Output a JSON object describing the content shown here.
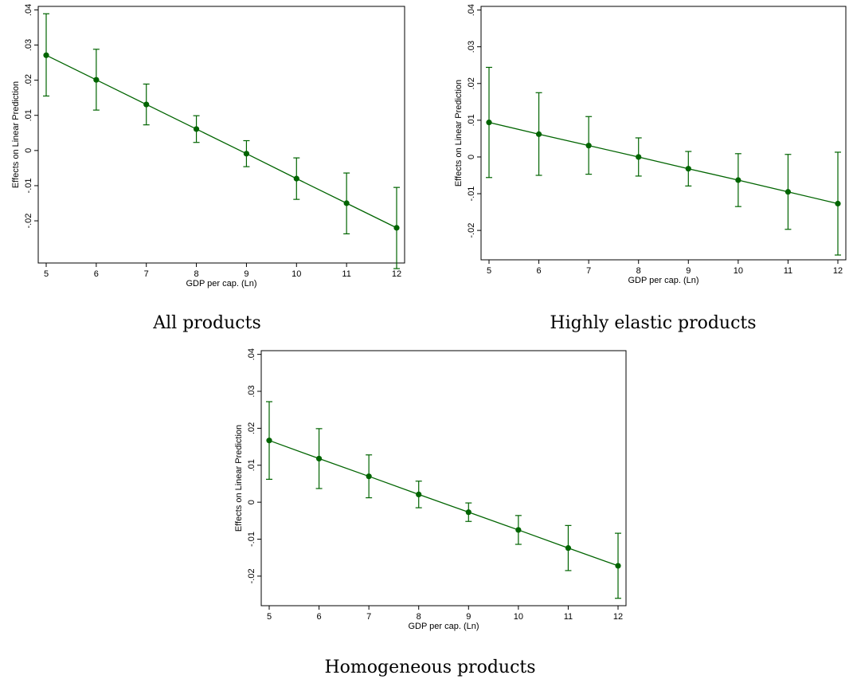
{
  "chart_data": [
    {
      "type": "line",
      "title": "All products",
      "xlabel": "GDP per cap. (Ln)",
      "ylabel": "Effects on Linear Prediction",
      "xlim": [
        5,
        12
      ],
      "ylim": [
        -0.032,
        0.041
      ],
      "x_ticks": [
        "5",
        "6",
        "7",
        "8",
        "9",
        "10",
        "11",
        "12"
      ],
      "y_ticks": [
        {
          "value": -0.02,
          "label": "-.02"
        },
        {
          "value": -0.01,
          "label": "-.01"
        },
        {
          "value": 0,
          "label": "0"
        },
        {
          "value": 0.01,
          "label": ".01"
        },
        {
          "value": 0.02,
          "label": ".02"
        },
        {
          "value": 0.03,
          "label": ".03"
        },
        {
          "value": 0.04,
          "label": ".04"
        }
      ],
      "grid": false,
      "series": [
        {
          "x": [
            5,
            6,
            7,
            8,
            9,
            10,
            11,
            12
          ],
          "y": [
            0.0271,
            0.0201,
            0.0131,
            0.0061,
            -0.0009,
            -0.008,
            -0.015,
            -0.022
          ],
          "lower": [
            0.0155,
            0.0115,
            0.0073,
            0.0023,
            -0.0046,
            -0.0139,
            -0.0237,
            -0.0336
          ],
          "upper": [
            0.0389,
            0.0288,
            0.0189,
            0.0099,
            0.0028,
            -0.0021,
            -0.0064,
            -0.0105
          ],
          "color": "#006400"
        }
      ]
    },
    {
      "type": "line",
      "title": "Highly elastic products",
      "xlabel": "GDP per cap. (Ln)",
      "ylabel": "Effects on Linear Prediction",
      "xlim": [
        5,
        12
      ],
      "ylim": [
        -0.028,
        0.041
      ],
      "x_ticks": [
        "5",
        "6",
        "7",
        "8",
        "9",
        "10",
        "11",
        "12"
      ],
      "y_ticks": [
        {
          "value": -0.02,
          "label": "-.02"
        },
        {
          "value": -0.01,
          "label": "-.01"
        },
        {
          "value": 0,
          "label": "0"
        },
        {
          "value": 0.01,
          "label": ".01"
        },
        {
          "value": 0.02,
          "label": ".02"
        },
        {
          "value": 0.03,
          "label": ".03"
        },
        {
          "value": 0.04,
          "label": ".04"
        }
      ],
      "grid": false,
      "series": [
        {
          "x": [
            5,
            6,
            7,
            8,
            9,
            10,
            11,
            12
          ],
          "y": [
            0.0094,
            0.0062,
            0.0031,
            0.0,
            -0.0032,
            -0.0063,
            -0.0095,
            -0.0127
          ],
          "lower": [
            -0.0056,
            -0.005,
            -0.0047,
            -0.0052,
            -0.0079,
            -0.0135,
            -0.0197,
            -0.0267
          ],
          "upper": [
            0.0244,
            0.0175,
            0.011,
            0.0052,
            0.0015,
            0.0009,
            0.0007,
            0.0013
          ],
          "color": "#006400"
        }
      ]
    },
    {
      "type": "line",
      "title": "Homogeneous products",
      "xlabel": "GDP per cap. (Ln)",
      "ylabel": "Effects on Linear Prediction",
      "xlim": [
        5,
        12
      ],
      "ylim": [
        -0.028,
        0.041
      ],
      "x_ticks": [
        "5",
        "6",
        "7",
        "8",
        "9",
        "10",
        "11",
        "12"
      ],
      "y_ticks": [
        {
          "value": -0.02,
          "label": "-.02"
        },
        {
          "value": -0.01,
          "label": "-.01"
        },
        {
          "value": 0,
          "label": "0"
        },
        {
          "value": 0.01,
          "label": ".01"
        },
        {
          "value": 0.02,
          "label": ".02"
        },
        {
          "value": 0.03,
          "label": ".03"
        },
        {
          "value": 0.04,
          "label": ".04"
        }
      ],
      "grid": false,
      "series": [
        {
          "x": [
            5,
            6,
            7,
            8,
            9,
            10,
            11,
            12
          ],
          "y": [
            0.0167,
            0.0118,
            0.007,
            0.0021,
            -0.0027,
            -0.0075,
            -0.0124,
            -0.0172
          ],
          "lower": [
            0.0062,
            0.0037,
            0.0012,
            -0.0015,
            -0.0052,
            -0.0114,
            -0.0185,
            -0.026
          ],
          "upper": [
            0.0272,
            0.0199,
            0.0128,
            0.0057,
            -0.0002,
            -0.0036,
            -0.0063,
            -0.0084
          ],
          "color": "#006400"
        }
      ]
    }
  ]
}
